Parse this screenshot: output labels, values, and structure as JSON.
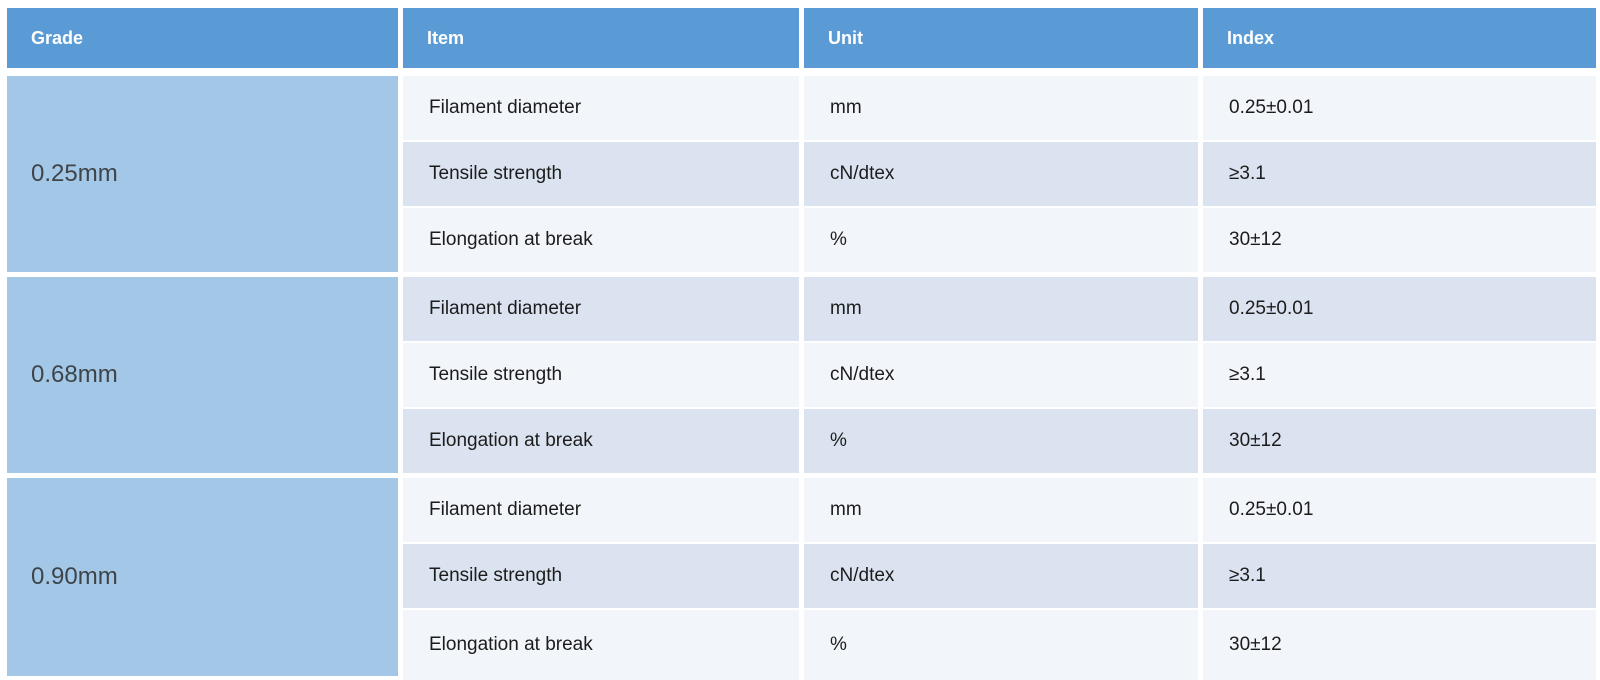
{
  "table": {
    "headers": [
      "Grade",
      "Item",
      "Unit",
      "Index"
    ],
    "groups": [
      {
        "grade": "0.25mm",
        "rows": [
          {
            "item": "Filament diameter",
            "unit": "mm",
            "index": "0.25±0.01"
          },
          {
            "item": "Tensile strength",
            "unit": "cN/dtex",
            "index": "≥3.1"
          },
          {
            "item": "Elongation at break",
            "unit": "%",
            "index": "30±12"
          }
        ]
      },
      {
        "grade": "0.68mm",
        "rows": [
          {
            "item": "Filament diameter",
            "unit": "mm",
            "index": "0.25±0.01"
          },
          {
            "item": "Tensile strength",
            "unit": "cN/dtex",
            "index": "≥3.1"
          },
          {
            "item": "Elongation at break",
            "unit": "%",
            "index": "30±12"
          }
        ]
      },
      {
        "grade": "0.90mm",
        "rows": [
          {
            "item": "Filament diameter",
            "unit": "mm",
            "index": "0.25±0.01"
          },
          {
            "item": "Tensile strength",
            "unit": "cN/dtex",
            "index": "≥3.1"
          },
          {
            "item": "Elongation at break",
            "unit": "%",
            "index": "30±12"
          }
        ]
      }
    ]
  },
  "colors": {
    "header_bg": "#5B9BD5",
    "header_text": "#FFFFFF",
    "grade_cell_bg": "#A3C7E7",
    "grade_cell_text": "#3F4449",
    "row_light_bg": "#F2F5FA",
    "row_dark_bg": "#DAE3EF",
    "body_text": "#1C1C1C",
    "divider": "#FFFFFF"
  },
  "chart_data": {
    "type": "table",
    "columns": [
      "Grade",
      "Item",
      "Unit",
      "Index"
    ],
    "rows": [
      [
        "0.25mm",
        "Filament diameter",
        "mm",
        "0.25±0.01"
      ],
      [
        "0.25mm",
        "Tensile strength",
        "cN/dtex",
        "≥3.1"
      ],
      [
        "0.25mm",
        "Elongation at break",
        "%",
        "30±12"
      ],
      [
        "0.68mm",
        "Filament diameter",
        "mm",
        "0.25±0.01"
      ],
      [
        "0.68mm",
        "Tensile strength",
        "cN/dtex",
        "≥3.1"
      ],
      [
        "0.68mm",
        "Elongation at break",
        "%",
        "30±12"
      ],
      [
        "0.90mm",
        "Filament diameter",
        "mm",
        "0.25±0.01"
      ],
      [
        "0.90mm",
        "Tensile strength",
        "cN/dtex",
        "≥3.1"
      ],
      [
        "0.90mm",
        "Elongation at break",
        "%",
        "30±12"
      ]
    ]
  }
}
